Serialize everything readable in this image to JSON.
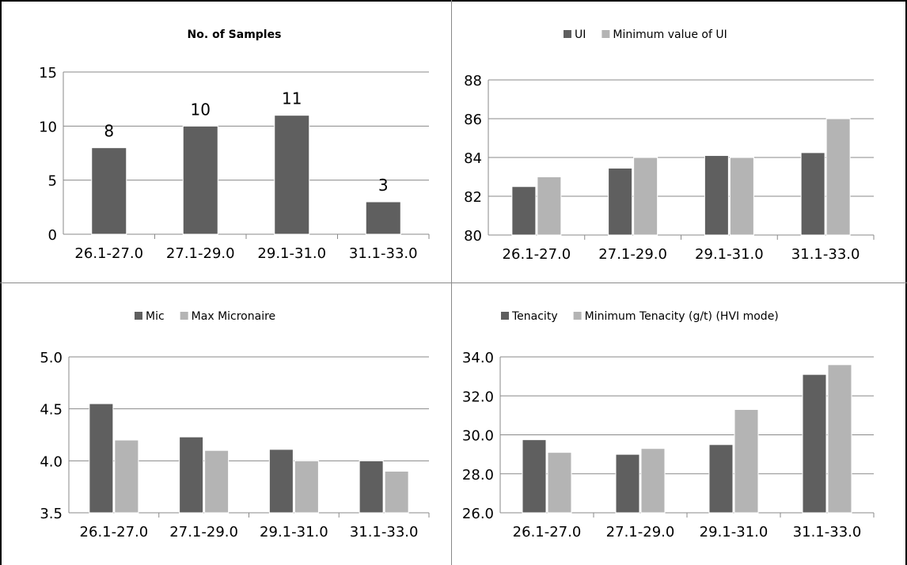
{
  "colors": {
    "primary": "#5f5f5f",
    "secondary": "#b4b4b4",
    "axis": "#8a8a8a",
    "grid": "#8a8a8a",
    "text": "#000000"
  },
  "chart_data": [
    {
      "type": "bar",
      "title": "No. of Samples",
      "categories": [
        "26.1-27.0",
        "27.1-29.0",
        "29.1-31.0",
        "31.1-33.0"
      ],
      "series": [
        {
          "values": [
            8,
            10,
            11,
            3
          ],
          "color": "#5f5f5f"
        }
      ],
      "data_labels": [
        "8",
        "10",
        "11",
        "3"
      ],
      "ylim": [
        0,
        15
      ],
      "yticks": [
        "0",
        "5",
        "10",
        "15"
      ],
      "grid": true,
      "legend": "none"
    },
    {
      "type": "bar",
      "title": "",
      "categories": [
        "26.1-27.0",
        "27.1-29.0",
        "29.1-31.0",
        "31.1-33.0"
      ],
      "series": [
        {
          "name": "UI",
          "values": [
            82.5,
            83.45,
            84.1,
            84.25
          ],
          "color": "#5f5f5f"
        },
        {
          "name": "Minimum value of UI",
          "values": [
            83,
            84,
            84,
            86
          ],
          "color": "#b4b4b4"
        }
      ],
      "ylim": [
        80,
        88
      ],
      "yticks": [
        "80",
        "82",
        "84",
        "86",
        "88"
      ],
      "grid": true,
      "legend": "top"
    },
    {
      "type": "bar",
      "title": "",
      "categories": [
        "26.1-27.0",
        "27.1-29.0",
        "29.1-31.0",
        "31.1-33.0"
      ],
      "series": [
        {
          "name": "Mic",
          "values": [
            4.55,
            4.23,
            4.11,
            4.0
          ],
          "color": "#5f5f5f"
        },
        {
          "name": "Max Micronaire",
          "values": [
            4.2,
            4.1,
            4.0,
            3.9
          ],
          "color": "#b4b4b4"
        }
      ],
      "ylim": [
        3.5,
        5.0
      ],
      "yticks": [
        "3.5",
        "4.0",
        "4.5",
        "5.0"
      ],
      "grid": true,
      "legend": "top"
    },
    {
      "type": "bar",
      "title": "",
      "categories": [
        "26.1-27.0",
        "27.1-29.0",
        "29.1-31.0",
        "31.1-33.0"
      ],
      "series": [
        {
          "name": "Tenacity",
          "values": [
            29.75,
            29.0,
            29.5,
            33.1
          ],
          "color": "#5f5f5f"
        },
        {
          "name": "Minimum Tenacity (g/t) (HVI mode)",
          "values": [
            29.1,
            29.3,
            31.3,
            33.6
          ],
          "color": "#b4b4b4"
        }
      ],
      "ylim": [
        26.0,
        34.0
      ],
      "yticks": [
        "26.0",
        "28.0",
        "30.0",
        "32.0",
        "34.0"
      ],
      "grid": true,
      "legend": "top"
    }
  ]
}
